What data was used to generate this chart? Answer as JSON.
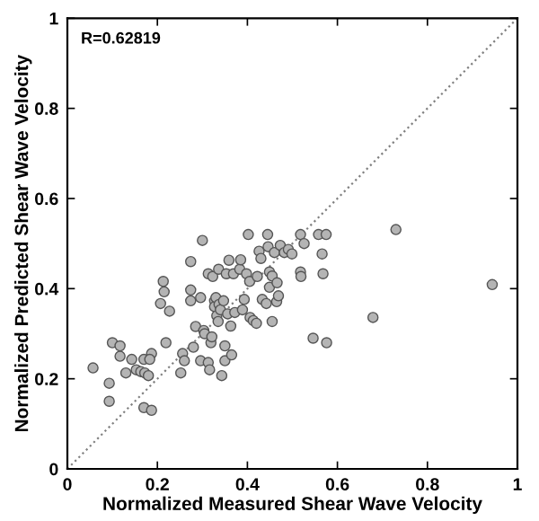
{
  "chart_data": {
    "type": "scatter",
    "xlabel": "Normalized Measured Shear Wave Velocity",
    "ylabel": "Normalized Predicted Shear Wave Velocity",
    "annotations": [
      "R=0.62819"
    ],
    "xlim": [
      0,
      1
    ],
    "ylim": [
      0,
      1
    ],
    "xticks": [
      0,
      0.2,
      0.4,
      0.6,
      0.8,
      1
    ],
    "yticks": [
      0,
      0.2,
      0.4,
      0.6,
      0.8,
      1
    ],
    "grid": false,
    "marker": "circle",
    "series": [
      {
        "color": "#b4b4b4",
        "x": [
          0.057,
          0.093,
          0.093,
          0.1,
          0.117,
          0.117,
          0.13,
          0.143,
          0.153,
          0.163,
          0.17,
          0.172,
          0.18,
          0.17,
          0.187,
          0.187,
          0.183,
          0.207,
          0.213,
          0.215,
          0.219,
          0.227,
          0.252,
          0.256,
          0.26,
          0.274,
          0.274,
          0.274,
          0.28,
          0.285,
          0.296,
          0.296,
          0.3,
          0.303,
          0.305,
          0.313,
          0.313,
          0.316,
          0.319,
          0.321,
          0.323,
          0.327,
          0.327,
          0.33,
          0.332,
          0.335,
          0.336,
          0.337,
          0.34,
          0.343,
          0.347,
          0.35,
          0.35,
          0.353,
          0.356,
          0.359,
          0.363,
          0.365,
          0.369,
          0.372,
          0.383,
          0.385,
          0.389,
          0.393,
          0.398,
          0.402,
          0.405,
          0.406,
          0.413,
          0.42,
          0.422,
          0.426,
          0.43,
          0.433,
          0.442,
          0.445,
          0.446,
          0.449,
          0.449,
          0.455,
          0.455,
          0.46,
          0.465,
          0.466,
          0.469,
          0.473,
          0.482,
          0.491,
          0.499,
          0.518,
          0.518,
          0.519,
          0.526,
          0.546,
          0.558,
          0.566,
          0.568,
          0.575,
          0.576,
          0.679,
          0.73,
          0.944
        ],
        "values": [
          0.224,
          0.19,
          0.15,
          0.28,
          0.273,
          0.25,
          0.213,
          0.243,
          0.22,
          0.216,
          0.243,
          0.213,
          0.207,
          0.136,
          0.13,
          0.256,
          0.243,
          0.367,
          0.416,
          0.393,
          0.28,
          0.35,
          0.213,
          0.256,
          0.24,
          0.46,
          0.397,
          0.373,
          0.27,
          0.316,
          0.38,
          0.24,
          0.507,
          0.307,
          0.3,
          0.433,
          0.236,
          0.22,
          0.28,
          0.293,
          0.427,
          0.373,
          0.36,
          0.38,
          0.34,
          0.327,
          0.443,
          0.365,
          0.353,
          0.207,
          0.373,
          0.273,
          0.24,
          0.433,
          0.344,
          0.463,
          0.317,
          0.253,
          0.433,
          0.347,
          0.443,
          0.464,
          0.353,
          0.376,
          0.433,
          0.52,
          0.416,
          0.336,
          0.329,
          0.323,
          0.427,
          0.483,
          0.467,
          0.376,
          0.367,
          0.52,
          0.493,
          0.437,
          0.403,
          0.327,
          0.428,
          0.48,
          0.371,
          0.413,
          0.384,
          0.496,
          0.48,
          0.487,
          0.477,
          0.52,
          0.437,
          0.427,
          0.5,
          0.29,
          0.52,
          0.477,
          0.433,
          0.52,
          0.28,
          0.336,
          0.531,
          0.409
        ]
      },
      {
        "type": "line",
        "color": "#808080",
        "line_style": "dotted",
        "marker": "none",
        "x": [
          0,
          1
        ],
        "values": [
          0,
          1
        ]
      }
    ]
  }
}
